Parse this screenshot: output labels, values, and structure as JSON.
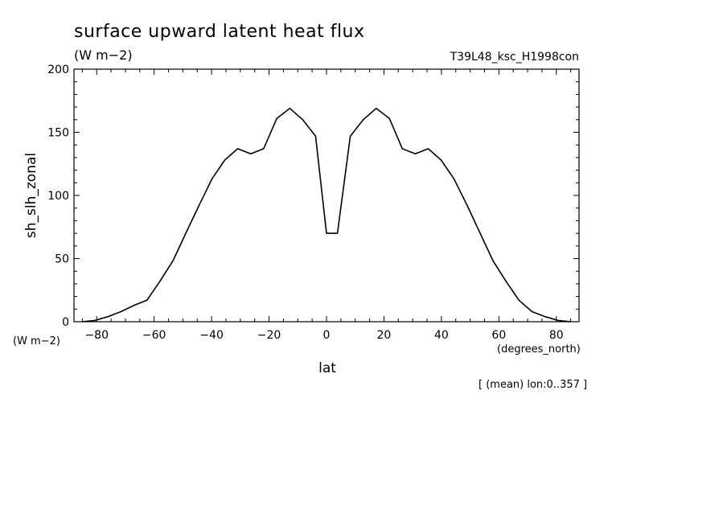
{
  "chart_data": {
    "type": "line",
    "title": "surface upward latent heat flux",
    "units": "(W m−2)",
    "dataset": "T39L48_ksc_H1998con",
    "ylabel": "sh_slh_zonal",
    "yunits": "(W m−2)",
    "xlabel": "lat",
    "xunits": "(degrees_north)",
    "footnote": "[ (mean) lon:0..357 ]",
    "xlim": [
      -87.9,
      87.9
    ],
    "ylim": [
      0,
      200
    ],
    "xticks": [
      -80,
      -60,
      -40,
      -20,
      0,
      20,
      40,
      60,
      80
    ],
    "xtick_labels": [
      "−80",
      "−60",
      "−40",
      "−20",
      "0",
      "20",
      "40",
      "60",
      "80"
    ],
    "yticks": [
      0,
      50,
      100,
      150,
      200
    ],
    "ytick_labels": [
      "0",
      "50",
      "100",
      "150",
      "200"
    ],
    "grid": false,
    "series": [
      {
        "x": [
          -85.1,
          -80.6,
          -76.1,
          -71.5,
          -67.0,
          -62.5,
          -58.0,
          -53.5,
          -49.0,
          -44.4,
          -39.9,
          -35.4,
          -30.9,
          -26.4,
          -21.9,
          -17.3,
          -12.8,
          -8.3,
          -3.8,
          0.0,
          3.8,
          8.3,
          12.8,
          17.3,
          21.9,
          26.4,
          30.9,
          35.4,
          39.9,
          44.4,
          49.0,
          53.5,
          58.0,
          62.5,
          67.0,
          71.5,
          76.1,
          80.6,
          85.1
        ],
        "values": [
          0,
          1,
          4,
          8,
          13,
          17,
          32,
          48,
          70,
          92,
          113,
          128,
          137,
          133,
          137,
          161,
          169,
          160,
          147,
          70,
          70,
          147,
          160,
          169,
          161,
          137,
          133,
          137,
          128,
          113,
          92,
          70,
          48,
          32,
          17,
          8,
          4,
          1,
          0
        ]
      }
    ]
  }
}
